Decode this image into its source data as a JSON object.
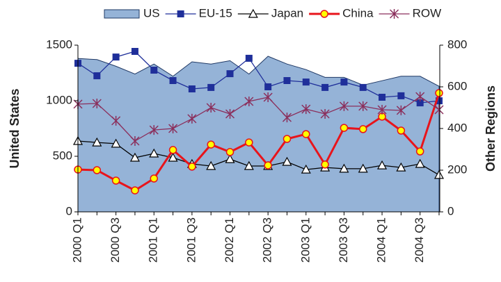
{
  "chart_data": {
    "type": "line",
    "y_label": "United States",
    "y2_label": "Other Regions",
    "categories": [
      "2000 Q1",
      null,
      "2000 Q3",
      null,
      "2001 Q1",
      null,
      "2001 Q3",
      null,
      "2002 Q1",
      null,
      "2002 Q3",
      null,
      "2003 Q1",
      null,
      "2003 Q3",
      null,
      "2004 Q1",
      null,
      "2004 Q3",
      null
    ],
    "ylim": [
      0,
      1500
    ],
    "yticks": [
      0,
      500,
      1000,
      1500
    ],
    "y2lim": [
      0,
      800
    ],
    "y2ticks": [
      0,
      200,
      400,
      600,
      800
    ],
    "legend": "top",
    "series": [
      {
        "name": "US",
        "color": "#95b3d7",
        "style": "area",
        "values": [
          1380,
          1370,
          1310,
          1240,
          1330,
          1220,
          1350,
          1330,
          1360,
          1240,
          1400,
          1330,
          1280,
          1210,
          1210,
          1140,
          1180,
          1220,
          1220,
          1130
        ]
      },
      {
        "name": "EU-15",
        "color": "#1f2f9a",
        "axis": "y2",
        "marker": "square",
        "values": [
          713,
          653,
          743,
          770,
          680,
          630,
          590,
          597,
          663,
          737,
          600,
          630,
          623,
          597,
          623,
          597,
          550,
          557,
          523,
          533
        ]
      },
      {
        "name": "Japan",
        "color": "#000000",
        "axis": "y2",
        "marker": "triangle",
        "values": [
          340,
          333,
          327,
          260,
          280,
          260,
          230,
          220,
          253,
          220,
          220,
          240,
          203,
          213,
          207,
          207,
          223,
          213,
          230,
          177
        ]
      },
      {
        "name": "China",
        "color": "#e8141b",
        "axis": "y2",
        "marker": "circle",
        "values": [
          203,
          200,
          150,
          103,
          160,
          297,
          217,
          323,
          287,
          333,
          223,
          350,
          373,
          227,
          403,
          397,
          457,
          390,
          290,
          570
        ]
      },
      {
        "name": "ROW",
        "color": "#8b2f5c",
        "axis": "y2",
        "marker": "star",
        "values": [
          517,
          520,
          437,
          340,
          393,
          400,
          447,
          500,
          470,
          530,
          550,
          453,
          493,
          470,
          507,
          507,
          490,
          487,
          553,
          490
        ]
      }
    ]
  }
}
